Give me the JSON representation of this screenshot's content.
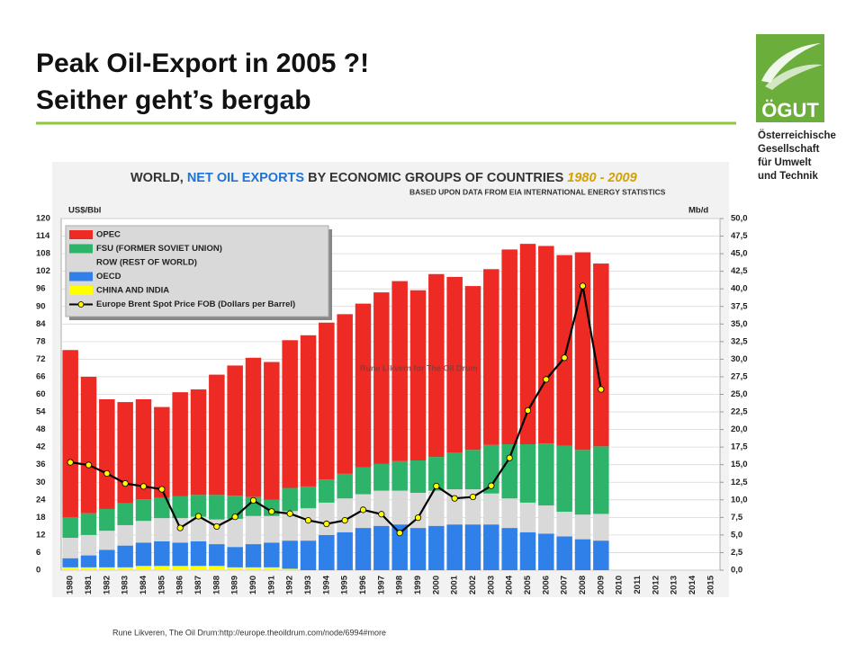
{
  "slide": {
    "title_lines": [
      "Peak Oil-Export in 2005 ?!",
      "Seither geht’s bergab"
    ],
    "source": "Rune Likveren, The Oil Drum:http://europe.theoildrum.com/node/6994#more",
    "logo": {
      "mark": "ÖGUT",
      "lines": [
        "Österreichische",
        "Gesellschaft",
        "für Umwelt",
        "und Technik"
      ]
    }
  },
  "chart_data": {
    "type": "bar",
    "stacked": true,
    "title_parts": [
      "WORLD,",
      "NET OIL EXPORTS",
      "BY ECONOMIC GROUPS OF COUNTRIES",
      "1980 - 2009"
    ],
    "subtitle": "BASED UPON DATA FROM EIA INTERNATIONAL ENERGY STATISTICS",
    "y_label": "US$/Bbl",
    "y2_label": "Mb/d",
    "annotation": "Rune Likvern for The Oil Drum",
    "categories": [
      "1980",
      "1981",
      "1982",
      "1983",
      "1984",
      "1985",
      "1986",
      "1987",
      "1988",
      "1989",
      "1990",
      "1991",
      "1992",
      "1993",
      "1994",
      "1995",
      "1996",
      "1997",
      "1998",
      "1999",
      "2000",
      "2001",
      "2002",
      "2003",
      "2004",
      "2005",
      "2006",
      "2007",
      "2008",
      "2009",
      "2010",
      "2011",
      "2012",
      "2013",
      "2014",
      "2015"
    ],
    "series": [
      {
        "name": "OPEC",
        "color": "#ee2a24",
        "axis": "y2",
        "values": [
          23.8,
          19.4,
          15.6,
          14.4,
          14.2,
          12.9,
          14.8,
          15.0,
          17.1,
          18.5,
          19.8,
          19.6,
          21.0,
          21.5,
          22.3,
          22.7,
          23.3,
          24.4,
          25.6,
          24.2,
          26.0,
          25.0,
          23.3,
          25.0,
          27.7,
          28.5,
          28.1,
          27.1,
          28.1,
          26.0,
          null,
          null,
          null,
          null,
          null,
          null
        ]
      },
      {
        "name": "FSU (FORMER SOVIET UNION)",
        "color": "#2db46a",
        "axis": "y2",
        "values": [
          2.9,
          3.1,
          3.1,
          3.1,
          3.1,
          2.9,
          3.1,
          3.1,
          3.5,
          3.3,
          2.7,
          2.3,
          3.3,
          3.1,
          3.3,
          3.5,
          3.8,
          3.8,
          4.2,
          4.6,
          4.8,
          5.2,
          5.6,
          6.9,
          7.7,
          8.3,
          8.8,
          9.4,
          9.2,
          9.6,
          null,
          null,
          null,
          null,
          null,
          null
        ]
      },
      {
        "name": "ROW (REST OF WORLD)",
        "color": "#d9d9d9",
        "axis": "y2",
        "values": [
          2.9,
          2.9,
          2.7,
          2.9,
          3.1,
          3.3,
          3.5,
          3.5,
          3.5,
          4.0,
          4.0,
          3.8,
          4.2,
          4.6,
          4.6,
          4.8,
          4.8,
          5.0,
          4.8,
          5.0,
          5.0,
          5.0,
          5.0,
          4.4,
          4.2,
          4.2,
          4.0,
          3.5,
          3.5,
          3.8,
          null,
          null,
          null,
          null,
          null,
          null
        ]
      },
      {
        "name": "OECD",
        "color": "#2f80e8",
        "axis": "y2",
        "values": [
          1.3,
          1.7,
          2.5,
          3.1,
          3.3,
          3.5,
          3.3,
          3.5,
          3.1,
          2.9,
          3.3,
          3.5,
          4.0,
          4.2,
          5.0,
          5.4,
          6.0,
          6.3,
          6.5,
          6.0,
          6.3,
          6.5,
          6.5,
          6.5,
          6.0,
          5.4,
          5.2,
          4.8,
          4.4,
          4.2,
          null,
          null,
          null,
          null,
          null,
          null
        ]
      },
      {
        "name": "CHINA AND INDIA",
        "color": "#ffff00",
        "axis": "y2",
        "values": [
          0.4,
          0.4,
          0.4,
          0.4,
          0.6,
          0.6,
          0.6,
          0.6,
          0.6,
          0.4,
          0.4,
          0.4,
          0.2,
          0,
          0,
          0,
          0,
          0,
          0,
          0,
          0,
          0,
          0,
          0,
          0,
          0,
          0,
          0,
          0,
          0,
          null,
          null,
          null,
          null,
          null,
          null
        ]
      },
      {
        "name": "Europe Brent Spot Price FOB (Dollars per Barrel)",
        "type": "line",
        "color": "#000000",
        "marker_color": "#ffff00",
        "axis": "y",
        "values": [
          36.8,
          35.9,
          33.0,
          29.6,
          28.6,
          27.6,
          14.4,
          18.4,
          14.9,
          18.2,
          23.8,
          20.0,
          19.3,
          17.0,
          15.8,
          17.0,
          20.6,
          19.1,
          12.7,
          17.9,
          28.7,
          24.5,
          25.0,
          28.8,
          38.3,
          54.5,
          65.1,
          72.5,
          97.0,
          61.7,
          null,
          null,
          null,
          null,
          null,
          null
        ]
      }
    ],
    "ylim": [
      0,
      120
    ],
    "yticks": [
      0,
      6,
      12,
      18,
      24,
      30,
      36,
      42,
      48,
      54,
      60,
      66,
      72,
      78,
      84,
      90,
      96,
      102,
      108,
      114,
      120
    ],
    "y2lim": [
      0,
      50
    ],
    "y2ticks": [
      {
        "value": 0,
        "label": "0,0"
      },
      {
        "value": 2.5,
        "label": "2,5"
      },
      {
        "value": 5,
        "label": "5,0"
      },
      {
        "value": 7.5,
        "label": "7,5"
      },
      {
        "value": 10,
        "label": "10,0"
      },
      {
        "value": 12.5,
        "label": "12,5"
      },
      {
        "value": 15,
        "label": "15,0"
      },
      {
        "value": 17.5,
        "label": "17,5"
      },
      {
        "value": 20,
        "label": "20,0"
      },
      {
        "value": 22.5,
        "label": "22,5"
      },
      {
        "value": 25,
        "label": "25,0"
      },
      {
        "value": 27.5,
        "label": "27,5"
      },
      {
        "value": 30,
        "label": "30,0"
      },
      {
        "value": 32.5,
        "label": "32,5"
      },
      {
        "value": 35,
        "label": "35,0"
      },
      {
        "value": 37.5,
        "label": "37,5"
      },
      {
        "value": 40,
        "label": "40,0"
      },
      {
        "value": 42.5,
        "label": "42,5"
      },
      {
        "value": 45,
        "label": "45,0"
      },
      {
        "value": 47.5,
        "label": "47,5"
      },
      {
        "value": 50,
        "label": "50,0"
      }
    ],
    "grid": true,
    "legend": "upper left"
  }
}
